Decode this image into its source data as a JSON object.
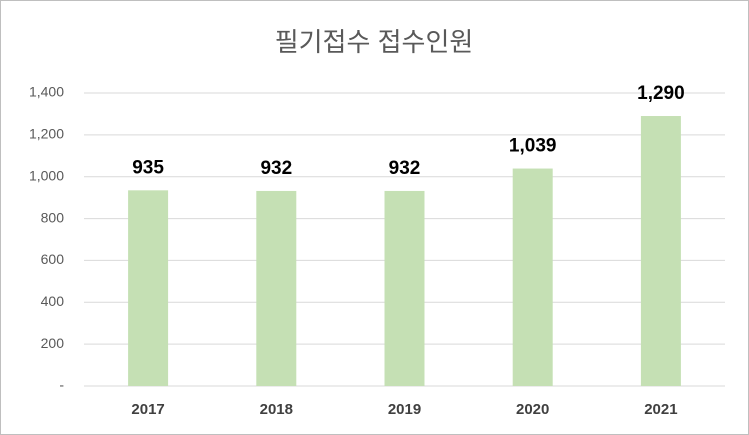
{
  "chart_data": {
    "type": "bar",
    "title": "필기접수 접수인원",
    "categories": [
      "2017",
      "2018",
      "2019",
      "2020",
      "2021"
    ],
    "values": [
      935,
      932,
      932,
      1039,
      1290
    ],
    "value_labels": [
      "935",
      "932",
      "932",
      "1,039",
      "1,290"
    ],
    "color": "#c5e0b4",
    "ylim": [
      0,
      1400
    ],
    "yticks": [
      {
        "value": 0,
        "label": "-"
      },
      200,
      400,
      600,
      800,
      {
        "value": 1000,
        "label": "1,000"
      },
      {
        "value": 1200,
        "label": "1,200"
      },
      {
        "value": 1400,
        "label": "1,400"
      }
    ],
    "grid": true
  }
}
